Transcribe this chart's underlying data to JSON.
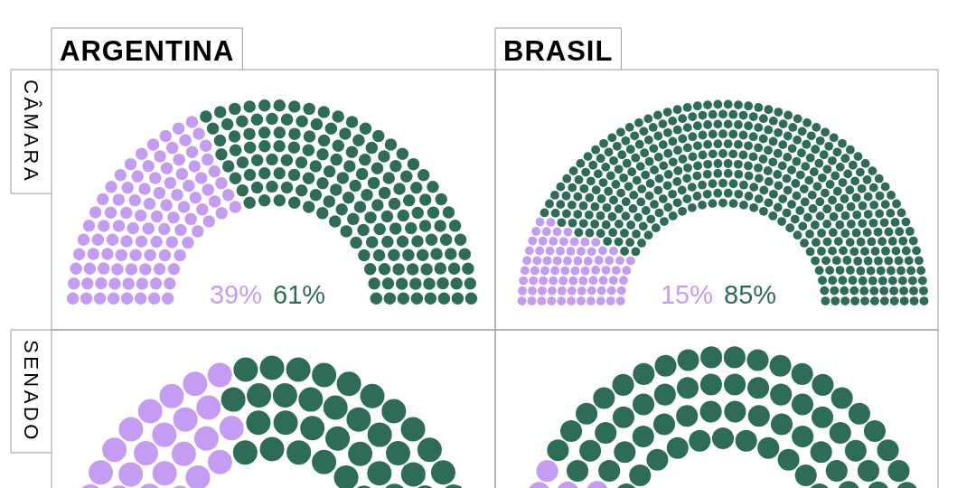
{
  "chart_data": [
    {
      "type": "donut",
      "title": "ARGENTINA",
      "ylabel": "CÂMARA",
      "categories": [
        null,
        null
      ],
      "values": [
        39,
        61
      ],
      "colors": [
        "#c49cf4",
        "#2d6d55"
      ],
      "value_labels": [
        "39%",
        "61%"
      ]
    },
    {
      "type": "donut",
      "title": "BRASIL",
      "categories": [
        null,
        null
      ],
      "values": [
        15,
        85
      ],
      "colors": [
        "#c49cf4",
        "#2d6d55"
      ],
      "value_labels": [
        "15%",
        "85%"
      ]
    },
    {
      "type": "donut",
      "ylabel": "SENADO",
      "categories": [
        null,
        null
      ],
      "values": [
        42,
        58
      ],
      "colors": [
        "#c49cf4",
        "#2d6d55"
      ]
    },
    {
      "type": "donut",
      "categories": [
        null,
        null
      ],
      "values": [
        15,
        85
      ],
      "colors": [
        "#c49cf4",
        "#2d6d55"
      ]
    }
  ]
}
